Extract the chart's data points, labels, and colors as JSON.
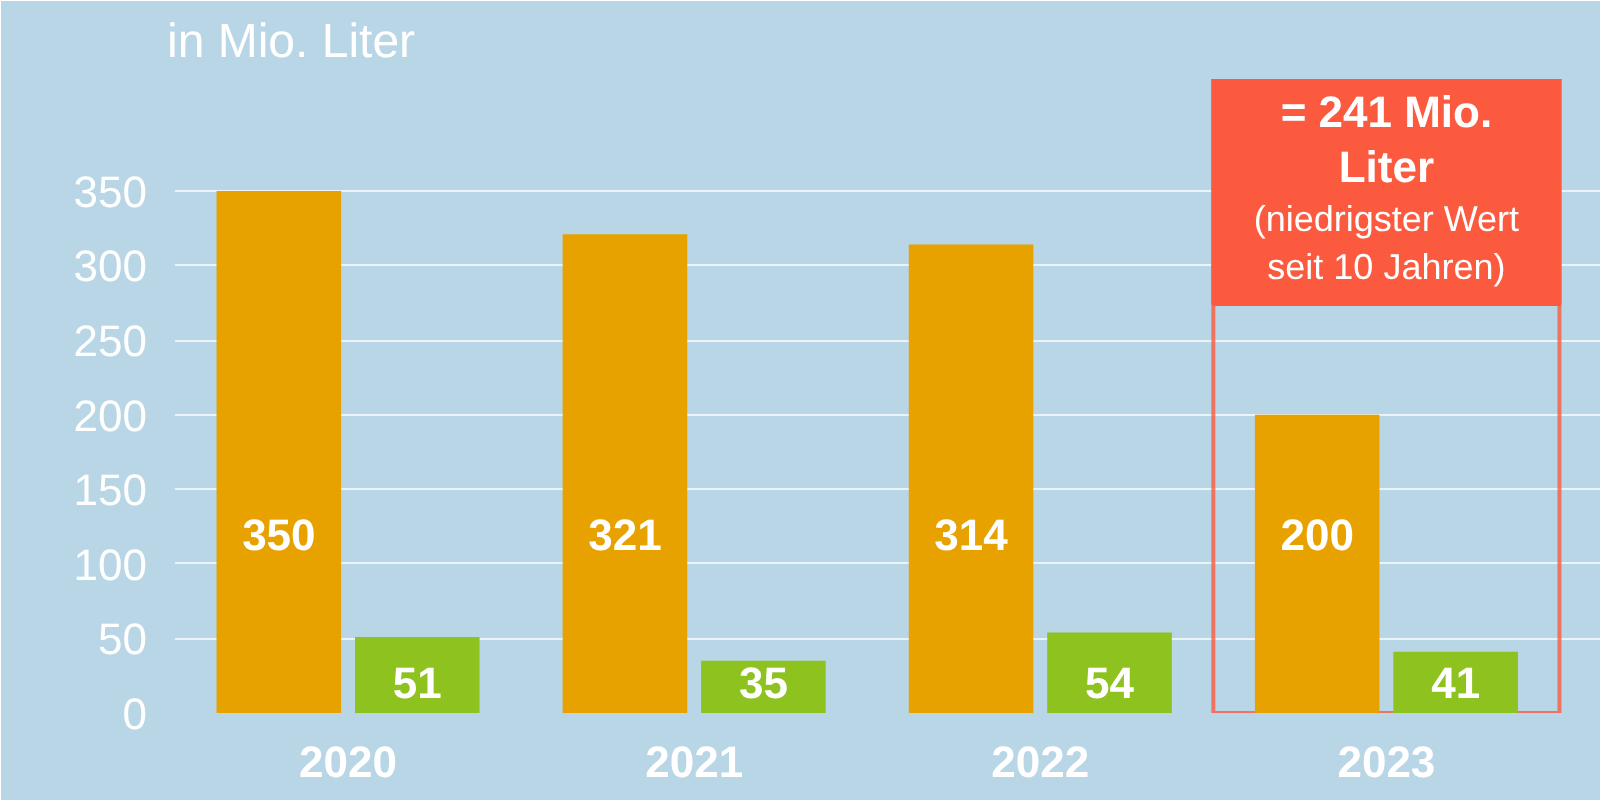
{
  "chart_data": {
    "type": "bar",
    "subtitle": "in Mio. Liter",
    "categories": [
      "2020",
      "2021",
      "2022",
      "2023"
    ],
    "series": [
      {
        "color": "#e8a200",
        "values": [
          350,
          321,
          314,
          200
        ]
      },
      {
        "color": "#8dc21f",
        "values": [
          51,
          35,
          54,
          41
        ]
      }
    ],
    "ylim": [
      0,
      425
    ],
    "yticks": [
      0,
      50,
      100,
      150,
      200,
      250,
      300,
      350
    ],
    "grid": "y",
    "data_labels": true,
    "bands": [
      {
        "axis": "x",
        "from": "2023",
        "to": "2023",
        "label": "= 241 Mio.\nLiter",
        "color": "#fb5a3e"
      }
    ],
    "annotations": [
      "(niedrigster Wert\nseit 10 Jahren)"
    ]
  }
}
